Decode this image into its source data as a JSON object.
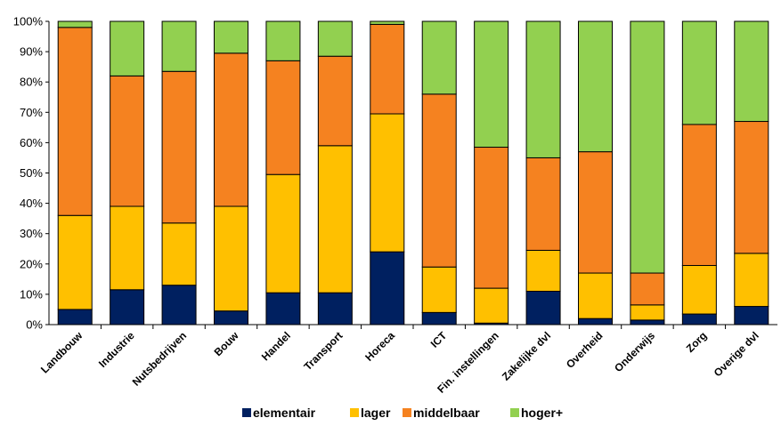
{
  "chart_data": {
    "type": "bar",
    "stacked": true,
    "categories": [
      "Landbouw",
      "Industrie",
      "Nutsbedrijven",
      "Bouw",
      "Handel",
      "Transport",
      "Horeca",
      "ICT",
      "Fin. instellingen",
      "Zakelijke dvl",
      "Overheid",
      "Onderwijs",
      "Zorg",
      "Overige dvl"
    ],
    "series": [
      {
        "name": "elementair",
        "color": "#002060",
        "values": [
          5,
          11.5,
          13,
          4.5,
          10.5,
          10.5,
          24,
          4,
          0.5,
          11,
          2,
          1.5,
          3.5,
          6
        ]
      },
      {
        "name": "lager",
        "color": "#ffc000",
        "values": [
          31,
          27.5,
          20.5,
          34.5,
          39,
          48.5,
          45.5,
          15,
          11.5,
          13.5,
          15,
          5,
          16,
          17.5
        ]
      },
      {
        "name": "middelbaar",
        "color": "#f58220",
        "values": [
          62,
          43,
          50,
          50.5,
          37.5,
          29.5,
          29.5,
          57,
          46.5,
          30.5,
          40,
          10.5,
          46.5,
          43.5
        ]
      },
      {
        "name": "hoger+",
        "color": "#92d050",
        "values": [
          2,
          18,
          16.5,
          10.5,
          13,
          11.5,
          1,
          24,
          41.5,
          45,
          43,
          83,
          34,
          33
        ]
      }
    ],
    "yticks": [
      "0%",
      "10%",
      "20%",
      "30%",
      "40%",
      "50%",
      "60%",
      "70%",
      "80%",
      "90%",
      "100%"
    ],
    "ylim": [
      0,
      100
    ],
    "grid": false,
    "legend_position": "bottom"
  }
}
